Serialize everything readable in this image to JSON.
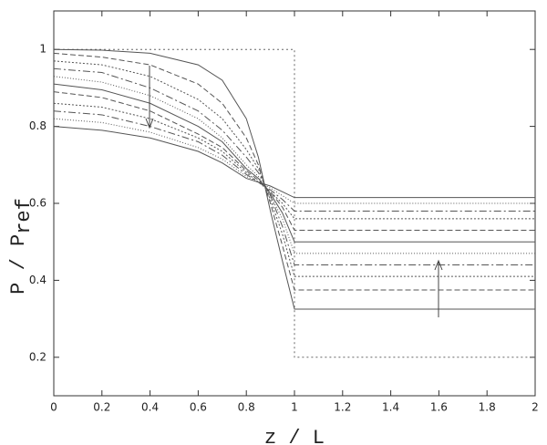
{
  "chart_data": {
    "type": "line",
    "xlabel": "z / L",
    "ylabel": "P / P",
    "ylabel_subscript": "ref",
    "xlim": [
      0,
      2
    ],
    "ylim": [
      0.1,
      1.1
    ],
    "xticks": [
      0,
      0.2,
      0.4,
      0.6,
      0.8,
      1,
      1.2,
      1.4,
      1.6,
      1.8,
      2
    ],
    "yticks": [
      0.2,
      0.4,
      0.6,
      0.8,
      1
    ],
    "grid": false,
    "series": [
      {
        "color": "#666666",
        "dash": "2 3",
        "x": [
          0,
          1,
          1,
          2
        ],
        "values": [
          1,
          1,
          0.2,
          0.2
        ]
      },
      {
        "color": "#555555",
        "dash": "none",
        "x": [
          0,
          0.2,
          0.4,
          0.6,
          0.7,
          0.8,
          0.85,
          0.9,
          0.95,
          1,
          2
        ],
        "values": [
          1.0,
          0.998,
          0.99,
          0.96,
          0.92,
          0.82,
          0.72,
          0.58,
          0.45,
          0.325,
          0.325
        ]
      },
      {
        "color": "#555555",
        "dash": "6 3",
        "x": [
          0,
          0.2,
          0.4,
          0.6,
          0.7,
          0.8,
          0.85,
          0.9,
          0.95,
          1,
          2
        ],
        "values": [
          0.99,
          0.98,
          0.96,
          0.91,
          0.86,
          0.77,
          0.7,
          0.6,
          0.49,
          0.375,
          0.375
        ]
      },
      {
        "color": "#555555",
        "dash": "2 2",
        "x": [
          0,
          0.2,
          0.4,
          0.6,
          0.7,
          0.8,
          0.85,
          0.9,
          0.95,
          1,
          2
        ],
        "values": [
          0.97,
          0.96,
          0.93,
          0.87,
          0.82,
          0.74,
          0.69,
          0.61,
          0.52,
          0.41,
          0.41
        ]
      },
      {
        "color": "#555555",
        "dash": "8 3 2 3",
        "x": [
          0,
          0.2,
          0.4,
          0.6,
          0.7,
          0.8,
          0.85,
          0.9,
          0.95,
          1,
          2
        ],
        "values": [
          0.95,
          0.94,
          0.9,
          0.84,
          0.79,
          0.72,
          0.68,
          0.62,
          0.54,
          0.44,
          0.44
        ]
      },
      {
        "color": "#555555",
        "dash": "1 2",
        "x": [
          0,
          0.2,
          0.4,
          0.6,
          0.7,
          0.8,
          0.85,
          0.9,
          0.95,
          1,
          2
        ],
        "values": [
          0.93,
          0.915,
          0.88,
          0.82,
          0.77,
          0.7,
          0.67,
          0.62,
          0.56,
          0.47,
          0.47
        ]
      },
      {
        "color": "#555555",
        "dash": "none",
        "x": [
          0,
          0.2,
          0.4,
          0.6,
          0.7,
          0.8,
          0.85,
          0.9,
          0.95,
          1,
          2
        ],
        "values": [
          0.91,
          0.895,
          0.86,
          0.8,
          0.76,
          0.69,
          0.665,
          0.625,
          0.575,
          0.5,
          0.5
        ]
      },
      {
        "color": "#555555",
        "dash": "6 3",
        "x": [
          0,
          0.2,
          0.4,
          0.6,
          0.7,
          0.8,
          0.85,
          0.9,
          0.95,
          1,
          2
        ],
        "values": [
          0.89,
          0.875,
          0.84,
          0.78,
          0.745,
          0.685,
          0.66,
          0.63,
          0.59,
          0.53,
          0.53
        ]
      },
      {
        "color": "#555555",
        "dash": "2 2",
        "x": [
          0,
          0.2,
          0.4,
          0.6,
          0.7,
          0.8,
          0.85,
          0.9,
          0.95,
          1,
          2
        ],
        "values": [
          0.86,
          0.85,
          0.82,
          0.77,
          0.735,
          0.68,
          0.655,
          0.63,
          0.6,
          0.56,
          0.56
        ]
      },
      {
        "color": "#555555",
        "dash": "8 3 2 3",
        "x": [
          0,
          0.2,
          0.4,
          0.6,
          0.7,
          0.8,
          0.85,
          0.9,
          0.95,
          1,
          2
        ],
        "values": [
          0.84,
          0.83,
          0.8,
          0.76,
          0.725,
          0.675,
          0.655,
          0.635,
          0.61,
          0.58,
          0.58
        ]
      },
      {
        "color": "#555555",
        "dash": "1 2",
        "x": [
          0,
          0.2,
          0.4,
          0.6,
          0.7,
          0.8,
          0.85,
          0.9,
          0.95,
          1,
          2
        ],
        "values": [
          0.82,
          0.81,
          0.785,
          0.745,
          0.715,
          0.67,
          0.655,
          0.64,
          0.62,
          0.6,
          0.6
        ]
      },
      {
        "color": "#555555",
        "dash": "none",
        "x": [
          0,
          0.2,
          0.4,
          0.6,
          0.7,
          0.8,
          0.85,
          0.9,
          0.95,
          1,
          2
        ],
        "values": [
          0.8,
          0.79,
          0.77,
          0.735,
          0.705,
          0.665,
          0.655,
          0.645,
          0.63,
          0.615,
          0.615
        ]
      }
    ]
  }
}
